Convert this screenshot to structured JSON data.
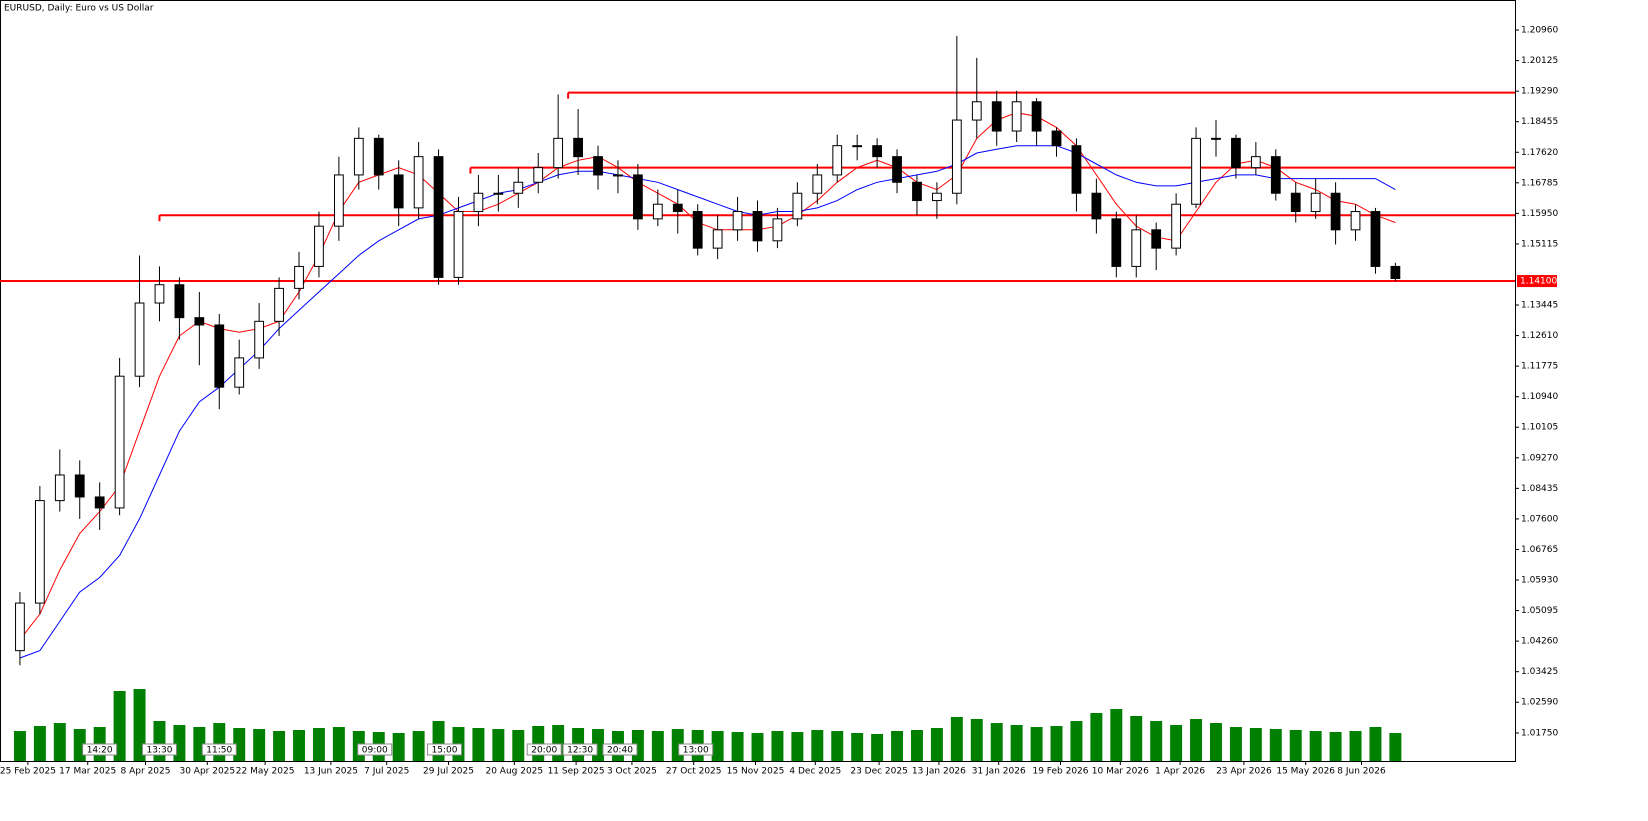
{
  "chart_data": {
    "type": "candlestick",
    "title": "EURUSD, Daily:  Euro vs US Dollar",
    "x": [
      0,
      1,
      2,
      3,
      4,
      5,
      6,
      7,
      8,
      9,
      10,
      11,
      12,
      13,
      14,
      15,
      16,
      17,
      18,
      19,
      20,
      21,
      22,
      23,
      24,
      25,
      26,
      27,
      28,
      29,
      30,
      31,
      32,
      33,
      34,
      35,
      36,
      37,
      38,
      39,
      40,
      41,
      42,
      43,
      44,
      45,
      46,
      47,
      48,
      49,
      50,
      51,
      52,
      53,
      54,
      55,
      56,
      57,
      58,
      59,
      60,
      61,
      62,
      63,
      64,
      65,
      66,
      67,
      68,
      69
    ],
    "open": [
      1.04,
      1.053,
      1.081,
      1.088,
      1.082,
      1.079,
      1.115,
      1.135,
      1.14,
      1.131,
      1.129,
      1.112,
      1.12,
      1.13,
      1.139,
      1.145,
      1.156,
      1.17,
      1.18,
      1.17,
      1.161,
      1.175,
      1.142,
      1.16,
      1.165,
      1.165,
      1.168,
      1.172,
      1.18,
      1.175,
      1.17,
      1.17,
      1.158,
      1.162,
      1.16,
      1.15,
      1.155,
      1.16,
      1.152,
      1.158,
      1.165,
      1.17,
      1.178,
      1.178,
      1.175,
      1.168,
      1.163,
      1.165,
      1.185,
      1.19,
      1.182,
      1.19,
      1.182,
      1.178,
      1.165,
      1.158,
      1.145,
      1.155,
      1.15,
      1.162,
      1.18,
      1.18,
      1.172,
      1.175,
      1.165,
      1.16,
      1.165,
      1.155,
      1.16,
      1.145
    ],
    "high": [
      1.056,
      1.085,
      1.095,
      1.092,
      1.086,
      1.12,
      1.148,
      1.145,
      1.142,
      1.138,
      1.132,
      1.125,
      1.135,
      1.142,
      1.149,
      1.16,
      1.175,
      1.183,
      1.181,
      1.174,
      1.179,
      1.177,
      1.164,
      1.17,
      1.17,
      1.172,
      1.176,
      1.192,
      1.188,
      1.178,
      1.174,
      1.173,
      1.166,
      1.166,
      1.162,
      1.159,
      1.164,
      1.163,
      1.161,
      1.168,
      1.173,
      1.181,
      1.181,
      1.18,
      1.177,
      1.17,
      1.168,
      1.208,
      1.202,
      1.193,
      1.193,
      1.191,
      1.183,
      1.18,
      1.169,
      1.16,
      1.159,
      1.157,
      1.165,
      1.183,
      1.185,
      1.181,
      1.179,
      1.177,
      1.168,
      1.169,
      1.168,
      1.162,
      1.161,
      1.146
    ],
    "low": [
      1.036,
      1.05,
      1.078,
      1.076,
      1.073,
      1.077,
      1.112,
      1.13,
      1.125,
      1.118,
      1.106,
      1.11,
      1.117,
      1.126,
      1.136,
      1.142,
      1.152,
      1.166,
      1.166,
      1.156,
      1.158,
      1.14,
      1.14,
      1.156,
      1.16,
      1.161,
      1.165,
      1.169,
      1.17,
      1.166,
      1.165,
      1.155,
      1.156,
      1.154,
      1.148,
      1.147,
      1.152,
      1.149,
      1.15,
      1.156,
      1.162,
      1.168,
      1.174,
      1.172,
      1.165,
      1.159,
      1.158,
      1.162,
      1.18,
      1.178,
      1.179,
      1.178,
      1.175,
      1.16,
      1.154,
      1.142,
      1.142,
      1.144,
      1.148,
      1.161,
      1.175,
      1.169,
      1.17,
      1.163,
      1.157,
      1.158,
      1.151,
      1.152,
      1.143,
      1.141
    ],
    "close": [
      1.053,
      1.081,
      1.088,
      1.082,
      1.079,
      1.115,
      1.135,
      1.14,
      1.131,
      1.129,
      1.112,
      1.12,
      1.13,
      1.139,
      1.145,
      1.156,
      1.17,
      1.18,
      1.17,
      1.161,
      1.175,
      1.142,
      1.16,
      1.165,
      1.165,
      1.168,
      1.172,
      1.18,
      1.175,
      1.17,
      1.17,
      1.158,
      1.162,
      1.16,
      1.15,
      1.155,
      1.16,
      1.152,
      1.158,
      1.165,
      1.17,
      1.178,
      1.178,
      1.175,
      1.168,
      1.163,
      1.165,
      1.185,
      1.19,
      1.182,
      1.19,
      1.182,
      1.178,
      1.165,
      1.158,
      1.145,
      1.155,
      1.15,
      1.162,
      1.18,
      1.18,
      1.172,
      1.175,
      1.165,
      1.16,
      1.165,
      1.155,
      1.16,
      1.145,
      1.1417
    ],
    "series": [
      {
        "color": "#ff0000",
        "values": [
          1.043,
          1.05,
          1.062,
          1.072,
          1.078,
          1.085,
          1.1,
          1.115,
          1.126,
          1.13,
          1.128,
          1.127,
          1.128,
          1.13,
          1.138,
          1.148,
          1.16,
          1.168,
          1.17,
          1.172,
          1.17,
          1.165,
          1.16,
          1.16,
          1.162,
          1.165,
          1.168,
          1.172,
          1.174,
          1.175,
          1.172,
          1.168,
          1.165,
          1.162,
          1.157,
          1.155,
          1.155,
          1.155,
          1.156,
          1.159,
          1.163,
          1.168,
          1.172,
          1.174,
          1.172,
          1.168,
          1.166,
          1.17,
          1.18,
          1.185,
          1.187,
          1.186,
          1.183,
          1.178,
          1.17,
          1.162,
          1.156,
          1.153,
          1.152,
          1.16,
          1.168,
          1.173,
          1.174,
          1.172,
          1.168,
          1.166,
          1.163,
          1.162,
          1.159,
          1.157
        ]
      },
      {
        "color": "#0000ff",
        "values": [
          1.038,
          1.04,
          1.048,
          1.056,
          1.06,
          1.066,
          1.076,
          1.088,
          1.1,
          1.108,
          1.112,
          1.117,
          1.122,
          1.128,
          1.133,
          1.138,
          1.143,
          1.148,
          1.152,
          1.155,
          1.158,
          1.159,
          1.161,
          1.163,
          1.165,
          1.166,
          1.168,
          1.17,
          1.171,
          1.171,
          1.17,
          1.169,
          1.168,
          1.166,
          1.164,
          1.162,
          1.16,
          1.159,
          1.16,
          1.16,
          1.161,
          1.163,
          1.166,
          1.168,
          1.169,
          1.17,
          1.171,
          1.173,
          1.176,
          1.177,
          1.178,
          1.178,
          1.178,
          1.176,
          1.173,
          1.17,
          1.168,
          1.167,
          1.167,
          1.168,
          1.169,
          1.17,
          1.17,
          1.169,
          1.169,
          1.169,
          1.169,
          1.169,
          1.169,
          1.166
        ]
      }
    ],
    "volume": [
      30,
      35,
      38,
      32,
      34,
      70,
      72,
      40,
      36,
      34,
      38,
      33,
      32,
      30,
      31,
      33,
      34,
      30,
      29,
      28,
      30,
      40,
      34,
      33,
      32,
      31,
      35,
      36,
      33,
      32,
      30,
      31,
      30,
      32,
      31,
      30,
      29,
      28,
      30,
      29,
      31,
      30,
      28,
      27,
      30,
      31,
      33,
      44,
      42,
      38,
      36,
      34,
      35,
      40,
      48,
      52,
      45,
      40,
      36,
      42,
      38,
      34,
      33,
      32,
      31,
      30,
      29,
      30,
      34,
      28
    ],
    "volume_color": "#008000",
    "levels": [
      {
        "value": 1.141,
        "label": "1.14100",
        "start": -1,
        "color": "#ff0000"
      },
      {
        "value": 1.159,
        "start": 7,
        "color": "#ff0000"
      },
      {
        "value": 1.172,
        "start": 22.6,
        "color": "#ff0000"
      },
      {
        "value": 1.1925,
        "start": 27.5,
        "color": "#ff0000"
      }
    ],
    "markers": [
      {
        "x": 4.0,
        "label": "14:20"
      },
      {
        "x": 7.0,
        "label": "13:30"
      },
      {
        "x": 10.0,
        "label": "11:50"
      },
      {
        "x": 17.8,
        "label": "09:00"
      },
      {
        "x": 21.3,
        "label": "15:00"
      },
      {
        "x": 26.3,
        "label": "20:00"
      },
      {
        "x": 28.1,
        "label": "12:30"
      },
      {
        "x": 30.1,
        "label": "20:40"
      },
      {
        "x": 33.9,
        "label": "13:00"
      }
    ],
    "xlim": [
      -1,
      75
    ],
    "xticks": [
      {
        "value": 0.4,
        "label": "25 Feb 2025"
      },
      {
        "value": 3.4,
        "label": "17 Mar 2025"
      },
      {
        "value": 6.3,
        "label": "8 Apr 2025"
      },
      {
        "value": 9.4,
        "label": "30 Apr 2025"
      },
      {
        "value": 12.3,
        "label": "22 May 2025"
      },
      {
        "value": 15.6,
        "label": "13 Jun 2025"
      },
      {
        "value": 18.4,
        "label": "7 Jul 2025"
      },
      {
        "value": 21.5,
        "label": "29 Jul 2025"
      },
      {
        "value": 24.8,
        "label": "20 Aug 2025"
      },
      {
        "value": 27.9,
        "label": "11 Sep 2025"
      },
      {
        "value": 30.7,
        "label": "3 Oct 2025"
      },
      {
        "value": 33.8,
        "label": "27 Oct 2025"
      },
      {
        "value": 36.9,
        "label": "15 Nov 2025"
      },
      {
        "value": 39.9,
        "label": "4 Dec 2025"
      },
      {
        "value": 43.1,
        "label": "23 Dec 2025"
      },
      {
        "value": 46.1,
        "label": "13 Jan 2026"
      },
      {
        "value": 49.1,
        "label": "31 Jan 2026"
      },
      {
        "value": 52.2,
        "label": "19 Feb 2026"
      },
      {
        "value": 55.2,
        "label": "10 Mar 2026"
      },
      {
        "value": 58.2,
        "label": "1 Apr 2026"
      },
      {
        "value": 61.4,
        "label": "23 Apr 2026"
      },
      {
        "value": 64.5,
        "label": "15 May 2026"
      },
      {
        "value": 67.3,
        "label": "8 Jun 2026"
      }
    ],
    "ylim": [
      1.00984,
      1.21781
    ],
    "yticks": [
      {
        "value": 1.2096,
        "label": "1.20960"
      },
      {
        "value": 1.20125,
        "label": "1.20125"
      },
      {
        "value": 1.1929,
        "label": "1.19290"
      },
      {
        "value": 1.18455,
        "label": "1.18455"
      },
      {
        "value": 1.1762,
        "label": "1.17620"
      },
      {
        "value": 1.16785,
        "label": "1.16785"
      },
      {
        "value": 1.1595,
        "label": "1.15950"
      },
      {
        "value": 1.15115,
        "label": "1.15115"
      },
      {
        "value": 1.13445,
        "label": "1.13445"
      },
      {
        "value": 1.1261,
        "label": "1.12610"
      },
      {
        "value": 1.11775,
        "label": "1.11775"
      },
      {
        "value": 1.1094,
        "label": "1.10940"
      },
      {
        "value": 1.10105,
        "label": "1.10105"
      },
      {
        "value": 1.0927,
        "label": "1.09270"
      },
      {
        "value": 1.08435,
        "label": "1.08435"
      },
      {
        "value": 1.076,
        "label": "1.07600"
      },
      {
        "value": 1.06765,
        "label": "1.06765"
      },
      {
        "value": 1.0593,
        "label": "1.05930"
      },
      {
        "value": 1.05095,
        "label": "1.05095"
      },
      {
        "value": 1.0426,
        "label": "1.04260"
      },
      {
        "value": 1.03425,
        "label": "1.03425"
      },
      {
        "value": 1.0259,
        "label": "1.02590"
      },
      {
        "value": 1.0175,
        "label": "1.01750"
      }
    ]
  }
}
